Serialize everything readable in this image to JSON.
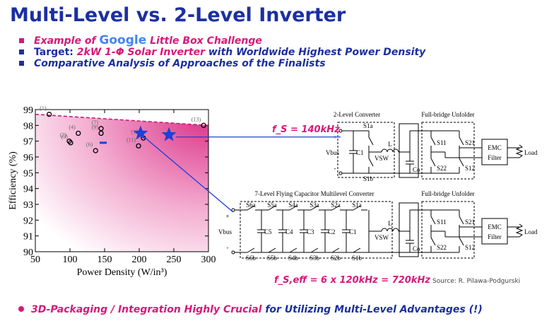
{
  "title": "Multi-Level  vs. 2-Level Inverter",
  "bullets": [
    {
      "parts": [
        "Example of",
        "Google",
        "Little Box Challenge"
      ]
    },
    {
      "parts": [
        "Target:",
        "2kW 1-Φ Solar Inverter",
        "with Worldwide Highest Power Density"
      ]
    },
    {
      "parts": [
        "Comparative Analysis of Approaches of the Finalists"
      ]
    }
  ],
  "chart_data": {
    "type": "scatter",
    "xlabel": "Power Density (W/in³)",
    "ylabel": "Efficiency (%)",
    "xlim": [
      50,
      300
    ],
    "xticks": [
      50,
      100,
      150,
      200,
      250,
      300
    ],
    "ylim": [
      90,
      99
    ],
    "yticks": [
      90,
      91,
      92,
      93,
      94,
      95,
      96,
      97,
      98,
      99
    ],
    "series": [
      {
        "color": "#c0166e",
        "marker": "dashed-line",
        "x": [
          50,
          300
        ],
        "values": [
          98.7,
          98.0
        ]
      },
      {
        "color": "#000000",
        "marker": "circle",
        "x": [
          70,
          99,
          101,
          112,
          137,
          145,
          145,
          199,
          206,
          293
        ],
        "values": [
          98.7,
          97.0,
          96.9,
          97.5,
          96.4,
          97.8,
          97.5,
          96.7,
          97.2,
          98.0
        ],
        "labels": [
          "(1)",
          "(2)",
          "(3)",
          "(4)",
          "(6)",
          "(7)",
          "(9)",
          "(11)",
          "(12)",
          "(13)"
        ]
      },
      {
        "color": "#1f3fd6",
        "marker": "dash",
        "x": [
          148
        ],
        "values": [
          96.9
        ]
      },
      {
        "color": "#1f3fd6",
        "marker": "star",
        "x": [
          202,
          243
        ],
        "values": [
          97.5,
          97.4
        ]
      }
    ]
  },
  "fs_note": "f_S = 140kHz",
  "fs_eff_note": "f_S,eff =  6 x 120kHz = 720kHz",
  "two_level": {
    "title": "2-Level Converter",
    "unfolder_title": "Full-bridge Unfolder",
    "labels": {
      "plus": "+",
      "minus": "-",
      "vbus": "Vbus",
      "s_top": [
        "S1a"
      ],
      "s_bot": [
        "S1b"
      ],
      "caps": [
        "C1"
      ],
      "l": "L",
      "vsw": "VSW",
      "co": "Co",
      "s11": "S11",
      "s21": "S21",
      "s22": "S22",
      "s12": "S12",
      "emc": "EMC",
      "filter": "Filter",
      "load": "Load"
    }
  },
  "multilevel": {
    "title": "7-Level Flying Capacitor Multilevel Converter",
    "unfolder_title": "Full-bridge Unfolder",
    "labels": {
      "plus": "+",
      "minus": "-",
      "vbus": "Vbus",
      "s_top": [
        "S6a",
        "S5a",
        "S4a",
        "S3a",
        "S2a",
        "S1a"
      ],
      "s_bot": [
        "S6b",
        "S5b",
        "S4b",
        "S3b",
        "S2b",
        "S1b"
      ],
      "caps": [
        "C5",
        "C4",
        "C3",
        "C2",
        "C1"
      ],
      "l": "L",
      "vsw": "VSW",
      "co": "Co",
      "s11": "S11",
      "s21": "S21",
      "s22": "S22",
      "s12": "S12",
      "emc": "EMC",
      "filter": "Filter",
      "load": "Load"
    }
  },
  "source": "Source: R. Pilawa-Podgurski",
  "footer": [
    "3D-Packaging / Integration Highly Crucial",
    "for Utilizing Multi-Level Advantages (!)"
  ]
}
